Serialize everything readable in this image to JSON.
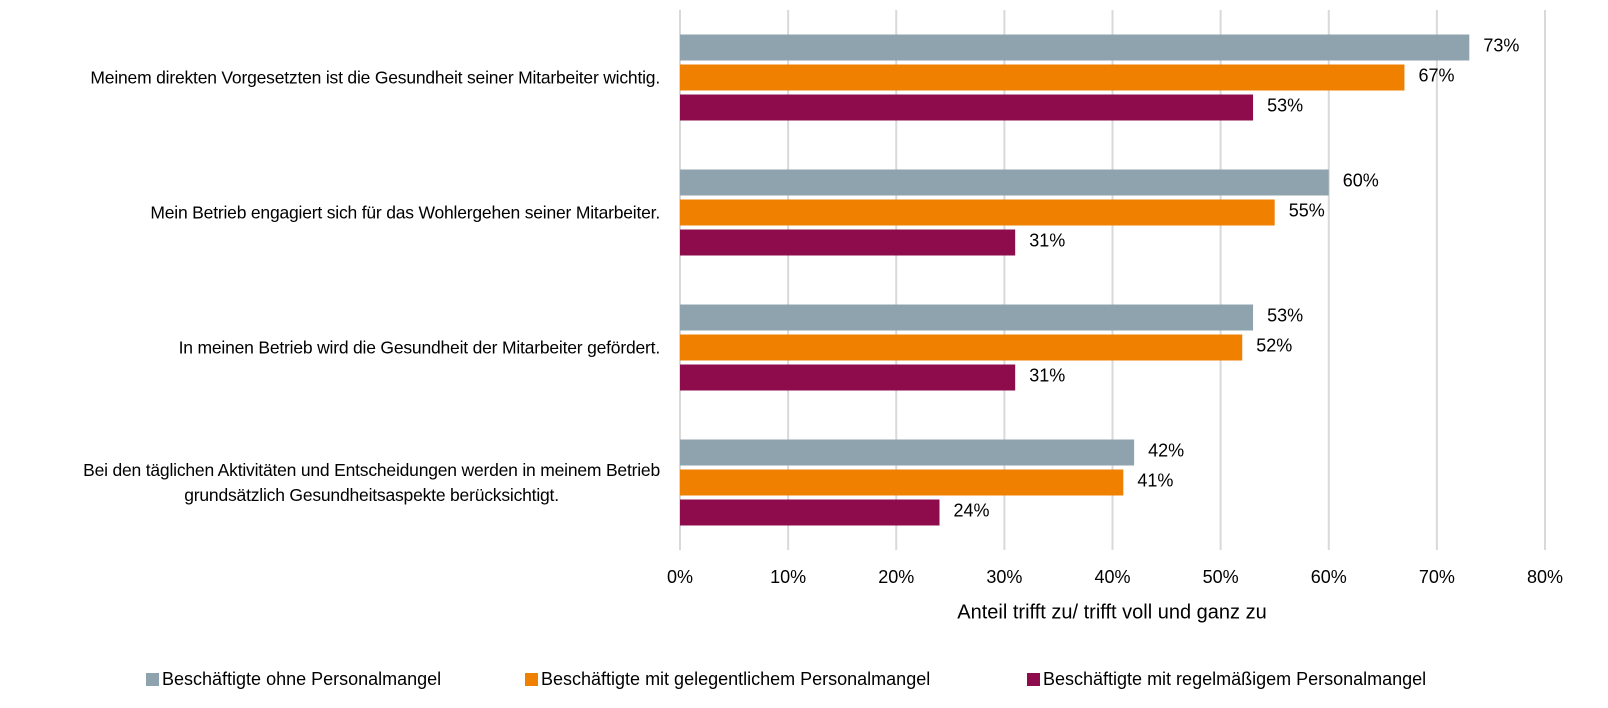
{
  "chart_data": {
    "type": "bar",
    "orientation": "horizontal",
    "categories": [
      "Meinem direkten Vorgesetzten ist die Gesundheit seiner Mitarbeiter wichtig.",
      "Mein Betrieb engagiert sich für das Wohlergehen seiner Mitarbeiter.",
      "In meinen Betrieb wird die Gesundheit der Mitarbeiter gefördert.",
      "Bei den täglichen Aktivitäten und Entscheidungen werden in meinem Betrieb\ngrundsätzlich Gesundheitsaspekte berücksichtigt."
    ],
    "series": [
      {
        "name": "Beschäftigte ohne Personalmangel",
        "color": "#8fa3ae",
        "values": [
          73,
          60,
          53,
          42
        ],
        "value_labels": [
          "73%",
          "60%",
          "53%",
          "42%"
        ]
      },
      {
        "name": "Beschäftigte mit gelegentlichem Personalmangel",
        "color": "#f08000",
        "values": [
          67,
          55,
          52,
          41
        ],
        "value_labels": [
          "67%",
          "55%",
          "52%",
          "41%"
        ]
      },
      {
        "name": "Beschäftigte mit regelmäßigem Personalmangel",
        "color": "#8e0c4c",
        "values": [
          53,
          31,
          31,
          24
        ],
        "value_labels": [
          "53%",
          "31%",
          "31%",
          "24%"
        ]
      }
    ],
    "xlabel": "Anteil trifft zu/ trifft voll und ganz zu",
    "xlim": [
      0,
      80
    ],
    "xticks": [
      {
        "value": 0,
        "label": "0%"
      },
      {
        "value": 10,
        "label": "10%"
      },
      {
        "value": 20,
        "label": "20%"
      },
      {
        "value": 30,
        "label": "30%"
      },
      {
        "value": 40,
        "label": "40%"
      },
      {
        "value": 50,
        "label": "50%"
      },
      {
        "value": 60,
        "label": "60%"
      },
      {
        "value": 70,
        "label": "70%"
      },
      {
        "value": 80,
        "label": "80%"
      }
    ],
    "grid": true,
    "legend": "bottom"
  }
}
